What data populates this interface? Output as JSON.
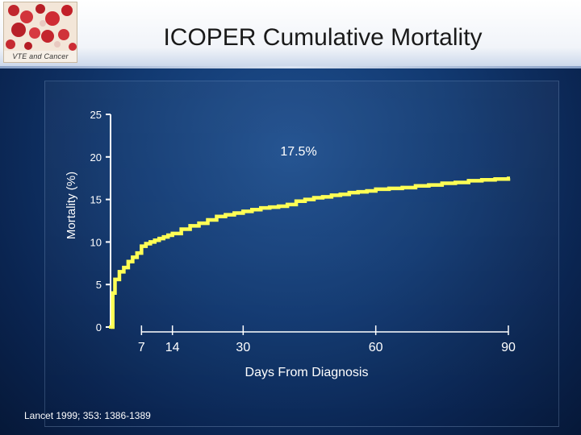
{
  "header": {
    "logo_caption": "VTE and Cancer",
    "title": "ICOPER Cumulative Mortality"
  },
  "footer": {
    "source": "Lancet 1999; 353: 1386-1389"
  },
  "colors": {
    "line": "#ffff55",
    "text": "#ffffff",
    "axis": "#ffffff"
  },
  "chart_data": {
    "type": "line",
    "title": "",
    "xlabel": "Days From Diagnosis",
    "ylabel": "Mortality (%)",
    "ylim": [
      0,
      25
    ],
    "yticks": [
      "0",
      "5",
      "10",
      "15",
      "20",
      "25"
    ],
    "xticks": [
      "7",
      "14",
      "30",
      "60",
      "90"
    ],
    "annotation": "17.5%",
    "series": [
      {
        "name": "",
        "x": [
          0,
          0.5,
          1,
          2,
          3,
          4,
          5,
          6,
          7,
          8,
          9,
          10,
          11,
          12,
          13,
          14,
          16,
          18,
          20,
          22,
          24,
          26,
          28,
          30,
          32,
          34,
          36,
          38,
          40,
          42,
          44,
          46,
          48,
          50,
          52,
          54,
          56,
          58,
          60,
          63,
          66,
          69,
          72,
          75,
          78,
          81,
          84,
          87,
          90
        ],
        "y": [
          0,
          4.0,
          5.6,
          6.5,
          7.0,
          7.7,
          8.2,
          8.7,
          9.5,
          9.8,
          10.0,
          10.2,
          10.4,
          10.6,
          10.8,
          11.0,
          11.5,
          11.9,
          12.2,
          12.6,
          13.0,
          13.2,
          13.4,
          13.6,
          13.8,
          14.0,
          14.1,
          14.2,
          14.4,
          14.8,
          15.0,
          15.2,
          15.3,
          15.5,
          15.6,
          15.8,
          15.9,
          16.0,
          16.2,
          16.3,
          16.4,
          16.6,
          16.7,
          16.9,
          17.0,
          17.2,
          17.3,
          17.4,
          17.5
        ]
      }
    ]
  }
}
